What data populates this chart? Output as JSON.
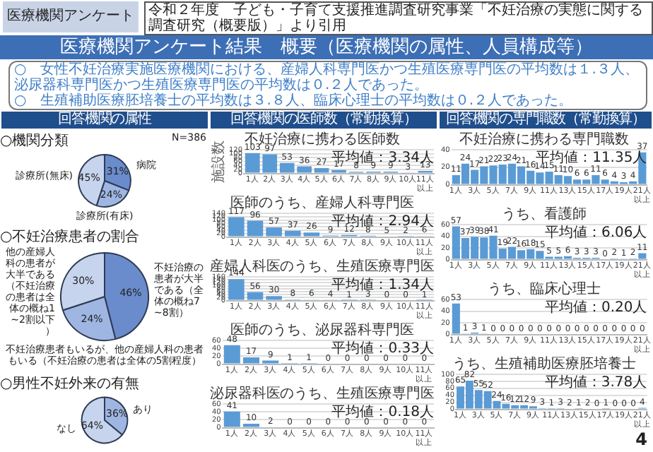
{
  "chart_data": [
    {
      "type": "other",
      "title": "医療機関アンケート結果　概要（医療機関の属性、人員構成等）",
      "annotations": [
        "医療機関アンケート",
        "令和２年度　子ども・子育て支援推進調査研究事業「不妊治療の実態に関する調査研究（概要版）」より引用",
        "○　女性不妊治療実施医療機関における、産婦人科専門医かつ生殖医療専門医の平均数は１.３人、泌尿器科専門医かつ生殖医療専門医の平均数は０.２人であった。",
        "○　生殖補助医療胚培養士の平均数は３.８人、臨床心理士の平均数は０.２人であった。",
        "4"
      ]
    },
    {
      "type": "pie",
      "subtitle": "回答機関の属性",
      "title": "○機関分類",
      "annotations": [
        "N=386"
      ],
      "categories": [
        "病院",
        "診療所(有床)",
        "診療所(無床)"
      ],
      "values": [
        31,
        24,
        45
      ],
      "value_labels": [
        "31%",
        "24%",
        "45%"
      ],
      "colors": [
        "#6a8ccc",
        "#9fb6e2",
        "#c7d4ee"
      ],
      "legend": false
    },
    {
      "type": "pie",
      "title": "○不妊治療患者の割合",
      "categories": [
        "不妊治療の患者が大半である（全体の概ね7~8割）",
        "不妊治療患者もいるが、他の産婦人科の患者もいる（不妊治療の患者は全体の5割程度）",
        "他の産婦人科の患者が大半である（不妊治療の患者は全体の概ね1~2割以下）"
      ],
      "values": [
        46,
        24,
        30
      ],
      "value_labels": [
        "46%",
        "24%",
        "30%"
      ],
      "colors": [
        "#6a8ccc",
        "#9fb6e2",
        "#c7d4ee"
      ],
      "legend": false
    },
    {
      "type": "pie",
      "title": "○男性不妊外来の有無",
      "categories": [
        "あり",
        "なし"
      ],
      "values": [
        36,
        64
      ],
      "value_labels": [
        "36%",
        "64%"
      ],
      "colors": [
        "#9fb6e2",
        "#c7d4ee"
      ],
      "legend": false
    },
    {
      "type": "bar",
      "subtitle": "回答機関の医師数（常勤換算）",
      "title": "不妊治療に携わる医師数",
      "ylabel": "施設数",
      "annotations": [
        "平均値：3.34人"
      ],
      "categories": [
        "1人",
        "2人",
        "3人",
        "4人",
        "5人",
        "6人",
        "7人",
        "8人",
        "9人",
        "10人",
        "11人以上"
      ],
      "values": [
        103,
        97,
        53,
        36,
        27,
        17,
        8,
        9,
        9,
        3,
        13
      ],
      "color": "#5b9bd5",
      "ylim": [
        0,
        120
      ],
      "yticks": [
        0,
        20,
        40,
        60,
        80,
        100,
        120
      ],
      "grid": "y",
      "data_labels": true,
      "legend": false
    },
    {
      "type": "bar",
      "title": "医師のうち、産婦人科専門医",
      "annotations": [
        "平均値：2.94人"
      ],
      "categories": [
        "1人",
        "2人",
        "3人",
        "4人",
        "5人",
        "6人",
        "7人",
        "8人",
        "9人",
        "10人",
        "11人以上"
      ],
      "values": [
        117,
        96,
        57,
        37,
        26,
        9,
        12,
        8,
        5,
        2,
        6
      ],
      "color": "#5b9bd5",
      "ylim": [
        0,
        140
      ],
      "yticks": [
        0,
        20,
        40,
        60,
        80,
        100,
        120,
        140
      ],
      "grid": "y",
      "data_labels": true,
      "legend": false
    },
    {
      "type": "bar",
      "title": "産婦人科医のうち、生殖医療専門医",
      "annotations": [
        "平均値：1.34人"
      ],
      "categories": [
        "1人",
        "2人",
        "3人",
        "4人",
        "5人",
        "6人",
        "7人",
        "8人",
        "9人",
        "10人",
        "11人以上"
      ],
      "values": [
        144,
        56,
        30,
        8,
        6,
        4,
        1,
        3,
        0,
        0,
        1
      ],
      "color": "#5b9bd5",
      "ylim": [
        0,
        160
      ],
      "yticks": [
        0,
        20,
        40,
        60,
        80,
        100,
        120,
        140,
        160
      ],
      "grid": "y",
      "data_labels": true,
      "legend": false
    },
    {
      "type": "bar",
      "title": "医師のうち、泌尿器科専門医",
      "annotations": [
        "平均値：0.33人"
      ],
      "categories": [
        "1人",
        "2人",
        "3人",
        "4人",
        "5人",
        "6人",
        "7人",
        "8人",
        "9人",
        "10人",
        "11人以上"
      ],
      "values": [
        48,
        17,
        9,
        1,
        1,
        0,
        0,
        0,
        0,
        0,
        0
      ],
      "color": "#5b9bd5",
      "ylim": [
        0,
        60
      ],
      "yticks": [
        0,
        20,
        40,
        60
      ],
      "grid": "y",
      "data_labels": true,
      "legend": false
    },
    {
      "type": "bar",
      "title": "泌尿器科医のうち、生殖医療専門医",
      "annotations": [
        "平均値：0.18人"
      ],
      "categories": [
        "1人",
        "2人",
        "3人",
        "4人",
        "5人",
        "6人",
        "7人",
        "8人",
        "9人",
        "10人",
        "11人以上"
      ],
      "values": [
        41,
        10,
        2,
        0,
        0,
        0,
        0,
        0,
        0,
        0,
        0
      ],
      "color": "#5b9bd5",
      "ylim": [
        0,
        60
      ],
      "yticks": [
        0,
        20,
        40,
        60
      ],
      "grid": "y",
      "data_labels": true,
      "legend": false
    },
    {
      "type": "bar",
      "subtitle": "回答機関の専門職数（常勤換算）",
      "title": "不妊治療に携わる専門職数",
      "annotations": [
        "平均値：11.35人"
      ],
      "categories": [
        "1人",
        null,
        "3人",
        null,
        "5人",
        null,
        "7人",
        null,
        "9人",
        null,
        "11人",
        null,
        "13人",
        null,
        "15人",
        null,
        "17人",
        null,
        "19人",
        null,
        "21人以上"
      ],
      "values": [
        11,
        24,
        17,
        21,
        22,
        23,
        24,
        21,
        16,
        14,
        15,
        11,
        10,
        6,
        6,
        11,
        6,
        4,
        3,
        4,
        37
      ],
      "color": "#5b9bd5",
      "ylim": [
        0,
        40
      ],
      "yticks": [
        0,
        20,
        40
      ],
      "grid": "y",
      "data_labels": true,
      "legend": false
    },
    {
      "type": "bar",
      "title": "うち、看護師",
      "annotations": [
        "平均値：6.06人"
      ],
      "categories": [
        "1人",
        null,
        "3人",
        null,
        "5人",
        null,
        "7人",
        null,
        "9人",
        null,
        "11人",
        null,
        "13人",
        null,
        "15人",
        null,
        "17人",
        null,
        "19人",
        null,
        "21人以上"
      ],
      "values": [
        57,
        37,
        39,
        38,
        41,
        19,
        22,
        16,
        18,
        15,
        5,
        5,
        6,
        3,
        3,
        3,
        0,
        2,
        1,
        2,
        11
      ],
      "color": "#5b9bd5",
      "ylim": [
        0,
        60
      ],
      "yticks": [
        0,
        20,
        40,
        60
      ],
      "grid": "y",
      "data_labels": true,
      "legend": false
    },
    {
      "type": "bar",
      "title": "うち、臨床心理士",
      "annotations": [
        "平均値：0.20人"
      ],
      "categories": [
        "1人",
        null,
        "3人",
        null,
        "5人",
        null,
        "7人",
        null,
        "9人",
        null,
        "11人",
        null,
        "13人",
        null,
        "15人",
        null,
        "17人",
        null,
        "19人",
        null,
        "21人以上"
      ],
      "values": [
        53,
        1,
        3,
        1,
        0,
        0,
        0,
        0,
        0,
        0,
        0,
        0,
        0,
        0,
        0,
        0,
        0,
        0,
        0,
        0,
        0
      ],
      "color": "#5b9bd5",
      "ylim": [
        0,
        60
      ],
      "yticks": [
        0,
        20,
        40,
        60
      ],
      "grid": "y",
      "data_labels": true,
      "legend": false
    },
    {
      "type": "bar",
      "title": "うち、生殖補助医療胚培養士",
      "annotations": [
        "平均値：3.78人"
      ],
      "categories": [
        "1人",
        null,
        "3人",
        null,
        "5人",
        null,
        "7人",
        null,
        "9人",
        null,
        "11人",
        null,
        "13人",
        null,
        "15人",
        null,
        "17人",
        null,
        "19人",
        null,
        "21人以上"
      ],
      "values": [
        65,
        82,
        55,
        52,
        24,
        16,
        12,
        12,
        9,
        3,
        1,
        3,
        2,
        1,
        2,
        0,
        1,
        0,
        0,
        0,
        4
      ],
      "color": "#5b9bd5",
      "ylim": [
        0,
        100
      ],
      "yticks": [
        0,
        20,
        40,
        60,
        80,
        100
      ],
      "grid": "y",
      "data_labels": true,
      "legend": false
    }
  ]
}
